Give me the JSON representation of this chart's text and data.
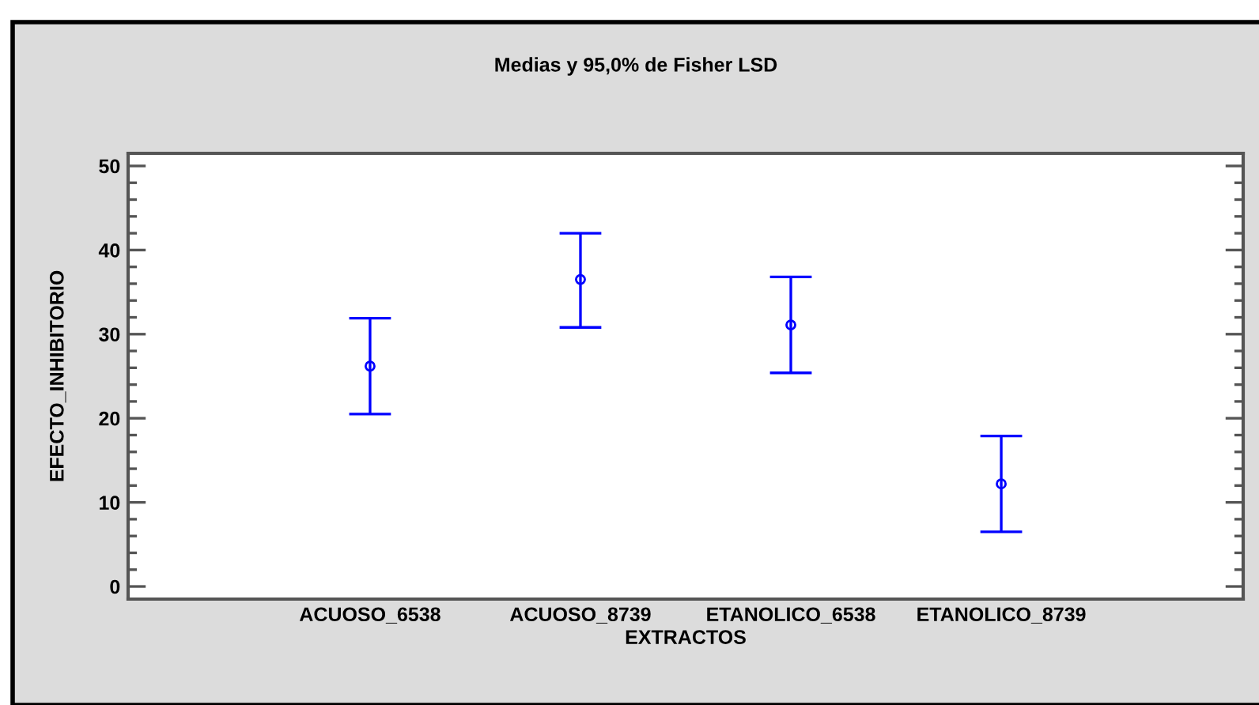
{
  "chart_data": {
    "type": "scatter",
    "title": "Medias y 95,0% de Fisher LSD",
    "xlabel": "EXTRACTOS",
    "ylabel": "EFECTO_INHIBITORIO",
    "categories": [
      "ACUOSO_6538",
      "ACUOSO_8739",
      "ETANOLICO_6538",
      "ETANOLICO_8739"
    ],
    "series": [
      {
        "color": "#0000ff",
        "values": [
          26.2,
          36.5,
          31.1,
          12.2
        ],
        "errors": [
          [
            20.5,
            31.9
          ],
          [
            30.8,
            42.0
          ],
          [
            25.4,
            36.8
          ],
          [
            6.5,
            17.9
          ]
        ]
      }
    ],
    "ylim": [
      -1.5,
      51.5
    ],
    "yticks": [
      0,
      10,
      20,
      30,
      40,
      50
    ],
    "grid": false,
    "marker": "circle"
  }
}
